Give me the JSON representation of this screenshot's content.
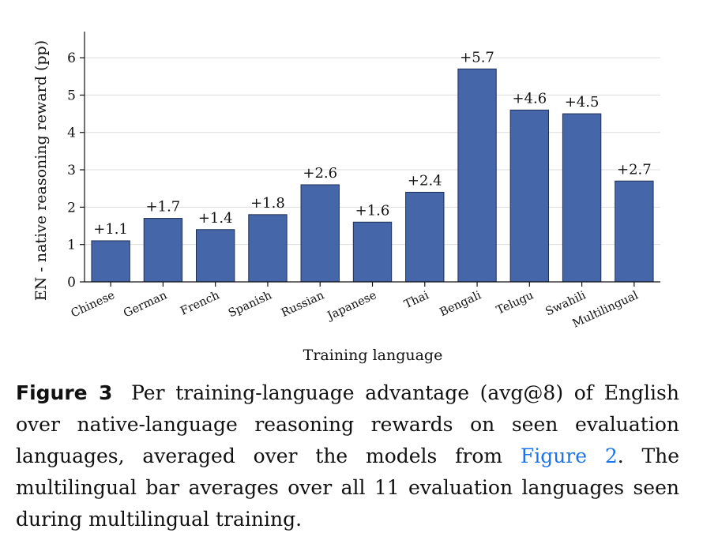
{
  "chart_data": {
    "type": "bar",
    "categories": [
      "Chinese",
      "German",
      "French",
      "Spanish",
      "Russian",
      "Japanese",
      "Thai",
      "Bengali",
      "Telugu",
      "Swahili",
      "Multilingual"
    ],
    "values": [
      1.1,
      1.7,
      1.4,
      1.8,
      2.6,
      1.6,
      2.4,
      5.7,
      4.6,
      4.5,
      2.7
    ],
    "data_labels": [
      "+1.1",
      "+1.7",
      "+1.4",
      "+1.8",
      "+2.6",
      "+1.6",
      "+2.4",
      "+5.7",
      "+4.6",
      "+4.5",
      "+2.7"
    ],
    "xlabel": "Training language",
    "ylabel": "EN - native reasoning reward (pp)",
    "ylim": [
      0,
      6.7
    ],
    "yticks": [
      0,
      1,
      2,
      3,
      4,
      5,
      6
    ],
    "grid": true,
    "bar_color": "#4566a8"
  },
  "caption": {
    "label": "Figure 3",
    "text_before": "Per training-language advantage (avg@8) of English over native-language reasoning rewards on seen evaluation languages, averaged over the models from ",
    "link": "Figure 2",
    "text_after": ". The multilingual bar averages over all 11 evaluation languages seen during multilingual training."
  }
}
